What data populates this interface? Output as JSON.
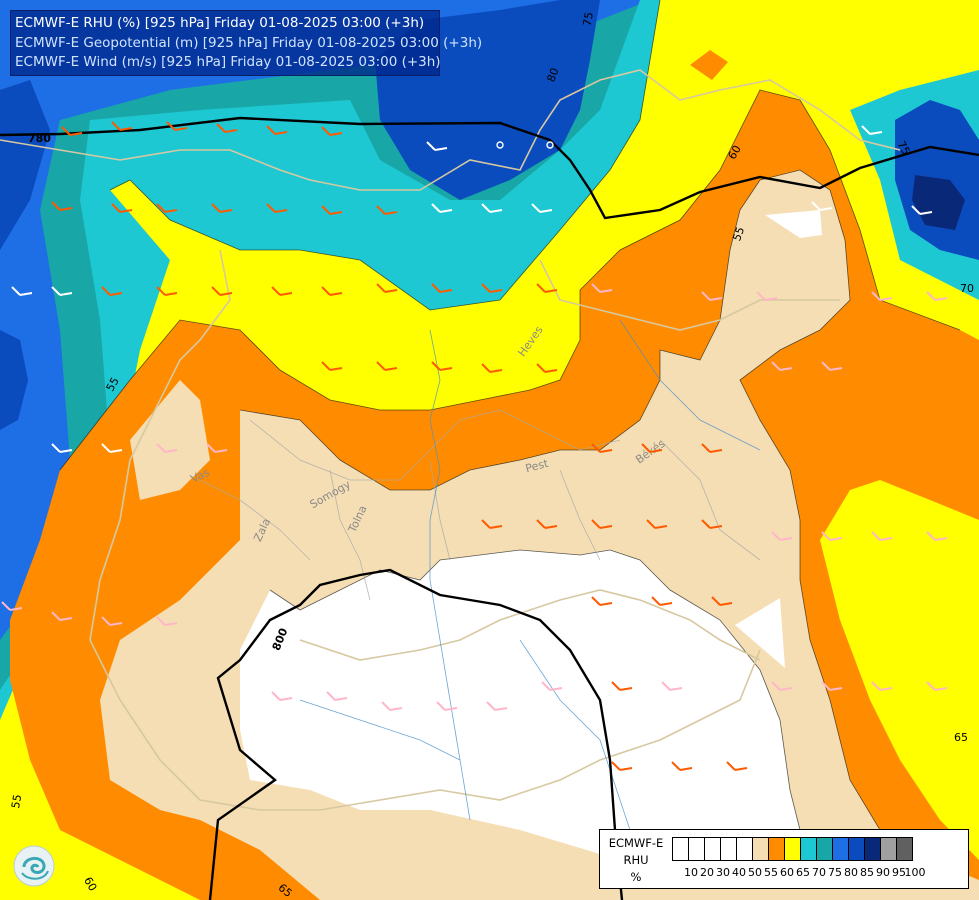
{
  "title": {
    "line1": "ECMWF-E RHU (%) [925 hPa] Friday 01-08-2025 03:00 (+3h)",
    "line2": "ECMWF-E Geopotential (m) [925 hPa] Friday 01-08-2025 03:00 (+3h)",
    "line3": "ECMWF-E Wind (m/s) [925 hPa] Friday 01-08-2025 03:00 (+3h)"
  },
  "legend": {
    "line1": "ECMWF-E",
    "line2": "RHU",
    "line3": "%",
    "levels": [
      "10",
      "20",
      "30",
      "40",
      "50",
      "55",
      "60",
      "65",
      "70",
      "75",
      "80",
      "85",
      "90",
      "95",
      "100"
    ],
    "colors": [
      "#ffffff",
      "#ffffff",
      "#ffffff",
      "#ffffff",
      "#ffffff",
      "#f5deb3",
      "#ff8c00",
      "#ffff00",
      "#1ec8d2",
      "#19a6a6",
      "#1e6ee6",
      "#0a4bbe",
      "#0a2878",
      "#a0a0a0",
      "#606060"
    ]
  },
  "colors": {
    "rh_50": "#ffffff",
    "rh_55": "#f5deb3",
    "rh_60": "#ff8c00",
    "rh_65": "#ffff00",
    "rh_70": "#1ec8d2",
    "rh_75": "#19a6a6",
    "rh_80": "#1e6ee6",
    "rh_85": "#0a4bbe",
    "rh_90": "#0a2878"
  },
  "contour_labels": [
    "75",
    "80",
    "780",
    "60",
    "55",
    "75",
    "70",
    "55",
    "Heves",
    "Pest",
    "Békés",
    "Vas",
    "Somogy",
    "Zala",
    "Tolna",
    "800",
    "55",
    "60",
    "65",
    "65"
  ],
  "logo_icon": "ecmwf-logo-icon"
}
